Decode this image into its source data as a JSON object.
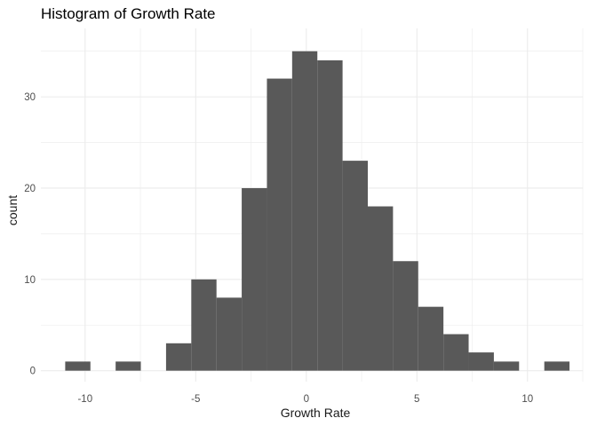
{
  "chart_data": {
    "type": "bar",
    "title": "Histogram of Growth Rate",
    "xlabel": "Growth Rate",
    "ylabel": "count",
    "bin_width": 1.14,
    "bins": [
      {
        "x0": -10.9,
        "x1": -9.76,
        "count": 1
      },
      {
        "x0": -9.76,
        "x1": -8.62,
        "count": 0
      },
      {
        "x0": -8.62,
        "x1": -7.48,
        "count": 1
      },
      {
        "x0": -7.48,
        "x1": -6.34,
        "count": 0
      },
      {
        "x0": -6.34,
        "x1": -5.2,
        "count": 3
      },
      {
        "x0": -5.2,
        "x1": -4.06,
        "count": 10
      },
      {
        "x0": -4.06,
        "x1": -2.92,
        "count": 8
      },
      {
        "x0": -2.92,
        "x1": -1.78,
        "count": 20
      },
      {
        "x0": -1.78,
        "x1": -0.64,
        "count": 32
      },
      {
        "x0": -0.64,
        "x1": 0.5,
        "count": 35
      },
      {
        "x0": 0.5,
        "x1": 1.64,
        "count": 34
      },
      {
        "x0": 1.64,
        "x1": 2.78,
        "count": 23
      },
      {
        "x0": 2.78,
        "x1": 3.92,
        "count": 18
      },
      {
        "x0": 3.92,
        "x1": 5.06,
        "count": 12
      },
      {
        "x0": 5.06,
        "x1": 6.2,
        "count": 7
      },
      {
        "x0": 6.2,
        "x1": 7.34,
        "count": 4
      },
      {
        "x0": 7.34,
        "x1": 8.48,
        "count": 2
      },
      {
        "x0": 8.48,
        "x1": 9.62,
        "count": 1
      },
      {
        "x0": 9.62,
        "x1": 10.76,
        "count": 0
      },
      {
        "x0": 10.76,
        "x1": 11.9,
        "count": 1
      }
    ],
    "xlim": [
      -12,
      12.5
    ],
    "ylim": [
      -1.2,
      37.5
    ],
    "x_ticks": [
      -10,
      -5,
      0,
      5,
      10
    ],
    "y_ticks": [
      0,
      10,
      20,
      30
    ],
    "bar_color": "#595959",
    "grid": true,
    "grid_color": "#ebebeb",
    "background": "#ffffff"
  }
}
